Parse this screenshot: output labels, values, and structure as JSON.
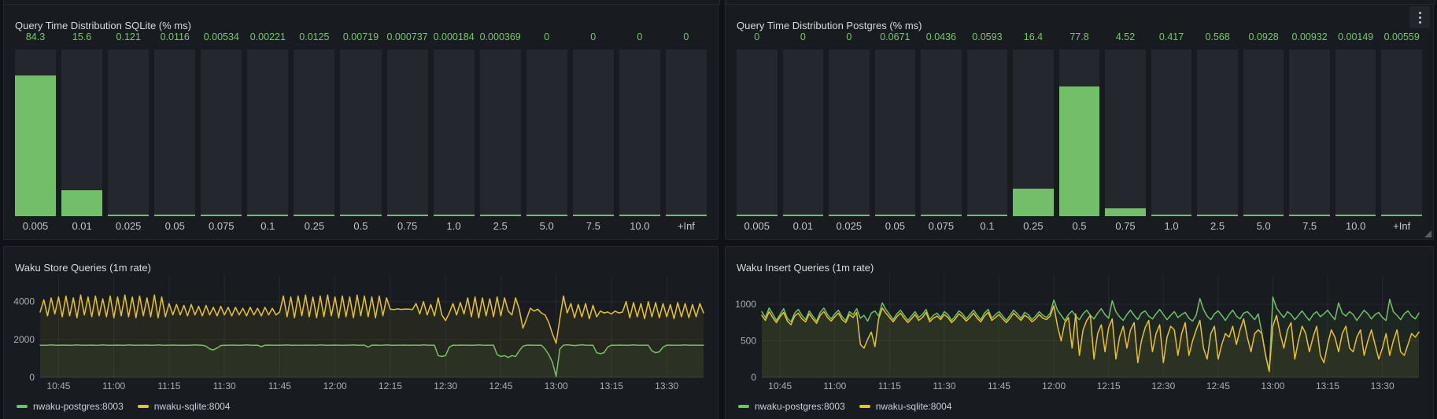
{
  "colors": {
    "green": "#73BF69",
    "yellow": "#E8C227",
    "bar_fill": "#73BF69",
    "bar_track": "#24272D",
    "value_label": "#7CC570",
    "panel_bg": "#181B1F",
    "page_bg": "#111217",
    "grid": "rgba(204,204,220,0.08)",
    "axis_line": "rgba(204,204,220,0.16)",
    "tick_text": "#A9ADB3"
  },
  "chart_data": [
    {
      "type": "bar",
      "title": "Query Time Distribution SQLite (% ms)",
      "xlabel": "",
      "ylabel": "",
      "ylim": [
        0,
        100
      ],
      "categories": [
        "0.005",
        "0.01",
        "0.025",
        "0.05",
        "0.075",
        "0.1",
        "0.25",
        "0.5",
        "0.75",
        "1.0",
        "2.5",
        "5.0",
        "7.5",
        "10.0",
        "+Inf"
      ],
      "values": [
        84.3,
        15.6,
        0.121,
        0.0116,
        0.00534,
        0.00221,
        0.0125,
        0.00719,
        0.000737,
        0.000184,
        0.000369,
        0,
        0,
        0,
        0
      ],
      "value_labels": [
        "84.3",
        "15.6",
        "0.121",
        "0.0116",
        "0.00534",
        "0.00221",
        "0.0125",
        "0.00719",
        "0.000737",
        "0.000184",
        "0.000369",
        "0",
        "0",
        "0",
        "0"
      ]
    },
    {
      "type": "bar",
      "title": "Query Time Distribution Postgres (% ms)",
      "xlabel": "",
      "ylabel": "",
      "ylim": [
        0,
        100
      ],
      "categories": [
        "0.005",
        "0.01",
        "0.025",
        "0.05",
        "0.075",
        "0.1",
        "0.25",
        "0.5",
        "0.75",
        "1.0",
        "2.5",
        "5.0",
        "7.5",
        "10.0",
        "+Inf"
      ],
      "values": [
        0,
        0,
        0,
        0.0671,
        0.0436,
        0.0593,
        16.4,
        77.8,
        4.52,
        0.417,
        0.568,
        0.0928,
        0.00932,
        0.00149,
        0.00559
      ],
      "value_labels": [
        "0",
        "0",
        "0",
        "0.0671",
        "0.0436",
        "0.0593",
        "16.4",
        "77.8",
        "4.52",
        "0.417",
        "0.568",
        "0.0928",
        "0.00932",
        "0.00149",
        "0.00559"
      ]
    },
    {
      "type": "line",
      "title": "Waku Store Queries (1m rate)",
      "xlabel": "",
      "ylabel": "",
      "grid": true,
      "legend_position": "bottom",
      "x_domain": [
        0,
        180
      ],
      "x_start_minute": 0,
      "x_step_minutes": 1,
      "x_ticks": [
        {
          "m": 5,
          "label": "10:45"
        },
        {
          "m": 20,
          "label": "11:00"
        },
        {
          "m": 35,
          "label": "11:15"
        },
        {
          "m": 50,
          "label": "11:30"
        },
        {
          "m": 65,
          "label": "11:45"
        },
        {
          "m": 80,
          "label": "12:00"
        },
        {
          "m": 95,
          "label": "12:15"
        },
        {
          "m": 110,
          "label": "12:30"
        },
        {
          "m": 125,
          "label": "12:45"
        },
        {
          "m": 140,
          "label": "13:00"
        },
        {
          "m": 155,
          "label": "13:15"
        },
        {
          "m": 170,
          "label": "13:30"
        }
      ],
      "y_ticks": [
        0,
        2000,
        4000
      ],
      "ylim": [
        0,
        5400
      ],
      "series": [
        {
          "name": "nwaku-postgres:8003",
          "color_key": "green",
          "values": [
            1700,
            1690,
            1700,
            1710,
            1700,
            1690,
            1705,
            1700,
            1695,
            1700,
            1710,
            1700,
            1690,
            1700,
            1705,
            1695,
            1700,
            1710,
            1700,
            1690,
            1700,
            1705,
            1700,
            1695,
            1710,
            1700,
            1690,
            1700,
            1700,
            1705,
            1695,
            1700,
            1710,
            1700,
            1690,
            1700,
            1705,
            1700,
            1695,
            1700,
            1690,
            1700,
            1710,
            1700,
            1695,
            1650,
            1500,
            1450,
            1550,
            1680,
            1700,
            1695,
            1705,
            1700,
            1690,
            1700,
            1710,
            1700,
            1695,
            1700,
            1620,
            1700,
            1705,
            1700,
            1690,
            1700,
            1700,
            1710,
            1695,
            1700,
            1700,
            1690,
            1705,
            1700,
            1700,
            1695,
            1710,
            1700,
            1690,
            1700,
            1705,
            1700,
            1695,
            1700,
            1700,
            1710,
            1690,
            1700,
            1700,
            1600,
            1700,
            1705,
            1695,
            1700,
            1710,
            1700,
            1690,
            1700,
            1700,
            1705,
            1695,
            1700,
            1700,
            1690,
            1710,
            1700,
            1700,
            1695,
            1150,
            1100,
            1150,
            1600,
            1700,
            1695,
            1705,
            1700,
            1700,
            1690,
            1700,
            1710,
            1700,
            1695,
            1700,
            1700,
            1200,
            1100,
            1150,
            1050,
            1150,
            1100,
            1400,
            1650,
            1700,
            1705,
            1700,
            1695,
            1700,
            1500,
            1200,
            800,
            50,
            1500,
            1700,
            1720,
            1700,
            1680,
            1700,
            1720,
            1700,
            1690,
            1700,
            1300,
            1250,
            1300,
            1600,
            1700,
            1695,
            1705,
            1700,
            1690,
            1700,
            1710,
            1700,
            1695,
            1700,
            1700,
            1400,
            1300,
            1350,
            1600,
            1700,
            1705,
            1695,
            1700,
            1700,
            1710,
            1690,
            1700,
            1700,
            1695,
            1700
          ]
        },
        {
          "name": "nwaku-sqlite:8004",
          "color_key": "yellow",
          "values": [
            3450,
            4100,
            3250,
            4200,
            3350,
            4250,
            3200,
            4300,
            3250,
            4200,
            3150,
            4350,
            3300,
            4250,
            3200,
            4300,
            3250,
            4150,
            3200,
            4300,
            3150,
            4250,
            3250,
            4350,
            3200,
            4250,
            3150,
            4300,
            3250,
            4200,
            3200,
            4350,
            3150,
            4250,
            3200,
            3900,
            3300,
            3850,
            3300,
            3800,
            3250,
            3850,
            3300,
            3750,
            3250,
            3800,
            3300,
            3700,
            3250,
            3750,
            3300,
            3700,
            3250,
            3700,
            3300,
            3650,
            3250,
            3700,
            3300,
            3650,
            3250,
            3700,
            3300,
            3650,
            3300,
            3450,
            4300,
            3200,
            4250,
            3150,
            4300,
            3250,
            4350,
            3200,
            4250,
            3150,
            4300,
            3200,
            4350,
            3250,
            4250,
            3150,
            4300,
            3200,
            4250,
            3150,
            4350,
            3250,
            4300,
            3200,
            4250,
            3150,
            4300,
            3250,
            4200,
            3600,
            3580,
            3620,
            3590,
            3610,
            3600,
            3580,
            3900,
            3350,
            4000,
            3300,
            3850,
            3250,
            4200,
            3300,
            3000,
            3400,
            3900,
            3300,
            3950,
            3350,
            4200,
            3200,
            4250,
            3150,
            4200,
            3250,
            4150,
            3200,
            4250,
            3250,
            4200,
            3500,
            3300,
            4200,
            3600,
            2600,
            3100,
            3650,
            3500,
            3600,
            3400,
            3300,
            2900,
            2300,
            1800,
            3100,
            4300,
            3400,
            3900,
            3150,
            3850,
            3200,
            3900,
            3100,
            3800,
            3200,
            3500,
            3400,
            3450,
            3350,
            3500,
            3400,
            3450,
            4000,
            3150,
            3950,
            3200,
            3900,
            3100,
            4000,
            3200,
            3950,
            3150,
            3900,
            3200,
            3850,
            3100,
            3950,
            3200,
            3900,
            3150,
            3850,
            3200,
            3900,
            3400
          ]
        }
      ]
    },
    {
      "type": "line",
      "title": "Waku Insert Queries (1m rate)",
      "xlabel": "",
      "ylabel": "",
      "grid": true,
      "legend_position": "bottom",
      "x_domain": [
        0,
        180
      ],
      "x_start_minute": 0,
      "x_step_minutes": 1,
      "x_ticks": [
        {
          "m": 5,
          "label": "10:45"
        },
        {
          "m": 20,
          "label": "11:00"
        },
        {
          "m": 35,
          "label": "11:15"
        },
        {
          "m": 50,
          "label": "11:30"
        },
        {
          "m": 65,
          "label": "11:45"
        },
        {
          "m": 80,
          "label": "12:00"
        },
        {
          "m": 95,
          "label": "12:15"
        },
        {
          "m": 110,
          "label": "12:30"
        },
        {
          "m": 125,
          "label": "12:45"
        },
        {
          "m": 140,
          "label": "13:00"
        },
        {
          "m": 155,
          "label": "13:15"
        },
        {
          "m": 170,
          "label": "13:30"
        }
      ],
      "y_ticks": [
        0,
        500,
        1000
      ],
      "ylim": [
        0,
        1400
      ],
      "series": [
        {
          "name": "nwaku-postgres:8003",
          "color_key": "green",
          "values": [
            900,
            820,
            950,
            870,
            780,
            860,
            940,
            810,
            760,
            880,
            930,
            850,
            790,
            910,
            840,
            770,
            890,
            950,
            860,
            800,
            870,
            920,
            830,
            780,
            900,
            860,
            940,
            810,
            850,
            770,
            880,
            910,
            840,
            1020,
            930,
            860,
            790,
            870,
            920,
            850,
            780,
            840,
            900,
            820,
            860,
            930,
            790,
            850,
            880,
            820,
            900,
            860,
            780,
            840,
            910,
            870,
            800,
            860,
            920,
            850,
            790,
            880,
            930,
            810,
            860,
            900,
            840,
            780,
            850,
            920,
            870,
            810,
            890,
            860,
            790,
            840,
            900,
            850,
            820,
            880,
            1060,
            920,
            850,
            780,
            860,
            910,
            840,
            790,
            870,
            920,
            850,
            800,
            880,
            940,
            860,
            810,
            1050,
            900,
            830,
            780,
            860,
            920,
            850,
            790,
            880,
            910,
            840,
            800,
            870,
            930,
            860,
            790,
            850,
            900,
            820,
            860,
            890,
            810,
            770,
            850,
            1080,
            930,
            840,
            790,
            870,
            910,
            850,
            780,
            860,
            920,
            840,
            800,
            880,
            900,
            850,
            790,
            870,
            600,
            300,
            80,
            1100,
            950,
            880,
            820,
            900,
            860,
            790,
            850,
            910,
            840,
            780,
            860,
            900,
            830,
            870,
            920,
            850,
            790,
            1020,
            880,
            840,
            900,
            860,
            780,
            850,
            920,
            870,
            800,
            860,
            890,
            820,
            780,
            1070,
            900,
            850,
            790,
            870,
            910,
            840,
            800,
            880
          ]
        },
        {
          "name": "nwaku-sqlite:8004",
          "color_key": "yellow",
          "values": [
            850,
            780,
            900,
            820,
            750,
            830,
            890,
            770,
            720,
            840,
            880,
            800,
            760,
            870,
            800,
            740,
            850,
            900,
            820,
            770,
            830,
            880,
            790,
            750,
            860,
            820,
            890,
            450,
            400,
            520,
            620,
            420,
            800,
            950,
            880,
            820,
            760,
            830,
            880,
            810,
            750,
            800,
            860,
            780,
            820,
            890,
            760,
            810,
            840,
            790,
            860,
            820,
            750,
            800,
            870,
            830,
            770,
            820,
            880,
            810,
            760,
            840,
            890,
            780,
            820,
            860,
            800,
            750,
            810,
            880,
            830,
            780,
            850,
            820,
            760,
            800,
            860,
            810,
            790,
            840,
            980,
            700,
            500,
            750,
            820,
            400,
            870,
            300,
            650,
            780,
            850,
            250,
            600,
            720,
            350,
            680,
            800,
            250,
            550,
            700,
            400,
            650,
            750,
            200,
            500,
            680,
            780,
            350,
            600,
            720,
            200,
            550,
            700,
            650,
            300,
            600,
            750,
            300,
            500,
            650,
            780,
            400,
            250,
            600,
            700,
            250,
            450,
            600,
            550,
            700,
            450,
            650,
            800,
            550,
            350,
            600,
            650,
            600,
            300,
            80,
            700,
            850,
            600,
            400,
            650,
            750,
            250,
            500,
            700,
            600,
            350,
            550,
            700,
            300,
            200,
            450,
            650,
            550,
            350,
            600,
            700,
            400,
            350,
            550,
            650,
            300,
            500,
            650,
            450,
            250,
            400,
            600,
            300,
            500,
            650,
            350,
            300,
            450,
            600,
            550,
            620
          ]
        }
      ]
    }
  ]
}
